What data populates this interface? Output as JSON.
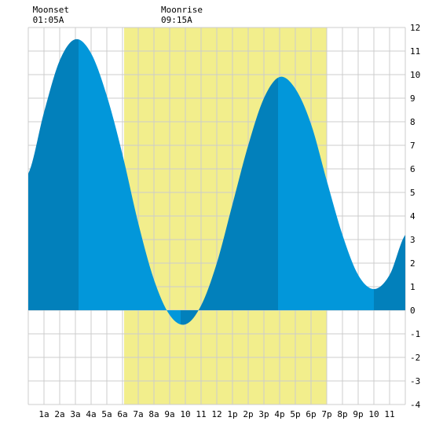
{
  "chart_data": {
    "type": "area",
    "title": "",
    "xlabel": "",
    "ylabel": "",
    "x_unit": "hour",
    "xlim": [
      0,
      24
    ],
    "ylim": [
      -4,
      12
    ],
    "grid": true,
    "x_tick_labels": [
      "1a",
      "2a",
      "3a",
      "4a",
      "5a",
      "6a",
      "7a",
      "8a",
      "9a",
      "10",
      "11",
      "12",
      "1p",
      "2p",
      "3p",
      "4p",
      "5p",
      "6p",
      "7p",
      "8p",
      "9p",
      "10",
      "11"
    ],
    "y_ticks": [
      -4,
      -3,
      -2,
      -1,
      0,
      1,
      2,
      3,
      4,
      5,
      6,
      7,
      8,
      9,
      10,
      11,
      12
    ],
    "moon_events": [
      {
        "label": "Moonset",
        "time": "01:05A",
        "hour": 1.08
      },
      {
        "label": "Moonrise",
        "time": "09:15A",
        "hour": 9.25
      }
    ],
    "daylight": {
      "start_hour": 6.1,
      "end_hour": 19.0
    },
    "extremes": [
      {
        "type": "high",
        "hour": 3.2,
        "height": 11.5
      },
      {
        "type": "low",
        "hour": 9.7,
        "height": -0.6
      },
      {
        "type": "high",
        "hour": 15.9,
        "height": 9.9
      },
      {
        "type": "low",
        "hour": 22.0,
        "height": 0.9
      }
    ],
    "series": [
      {
        "x": [
          0,
          1,
          2,
          3,
          4,
          5,
          6,
          7,
          8,
          9,
          10,
          11,
          12,
          13,
          14,
          15,
          16,
          17,
          18,
          19,
          20,
          21,
          22,
          23,
          24
        ],
        "values": [
          5.8,
          8.4,
          10.6,
          11.5,
          10.9,
          9.1,
          6.6,
          3.7,
          1.3,
          -0.2,
          -0.6,
          0.2,
          2.0,
          4.5,
          7.0,
          9.0,
          9.9,
          9.4,
          7.9,
          5.5,
          3.2,
          1.5,
          0.9,
          1.5,
          3.2
        ]
      }
    ],
    "colors": {
      "daylight": "#f2ee8c",
      "tide_light": "#0297da",
      "tide_dark": "#0280bb",
      "grid": "#cccccc",
      "background": "#ffffff"
    }
  }
}
